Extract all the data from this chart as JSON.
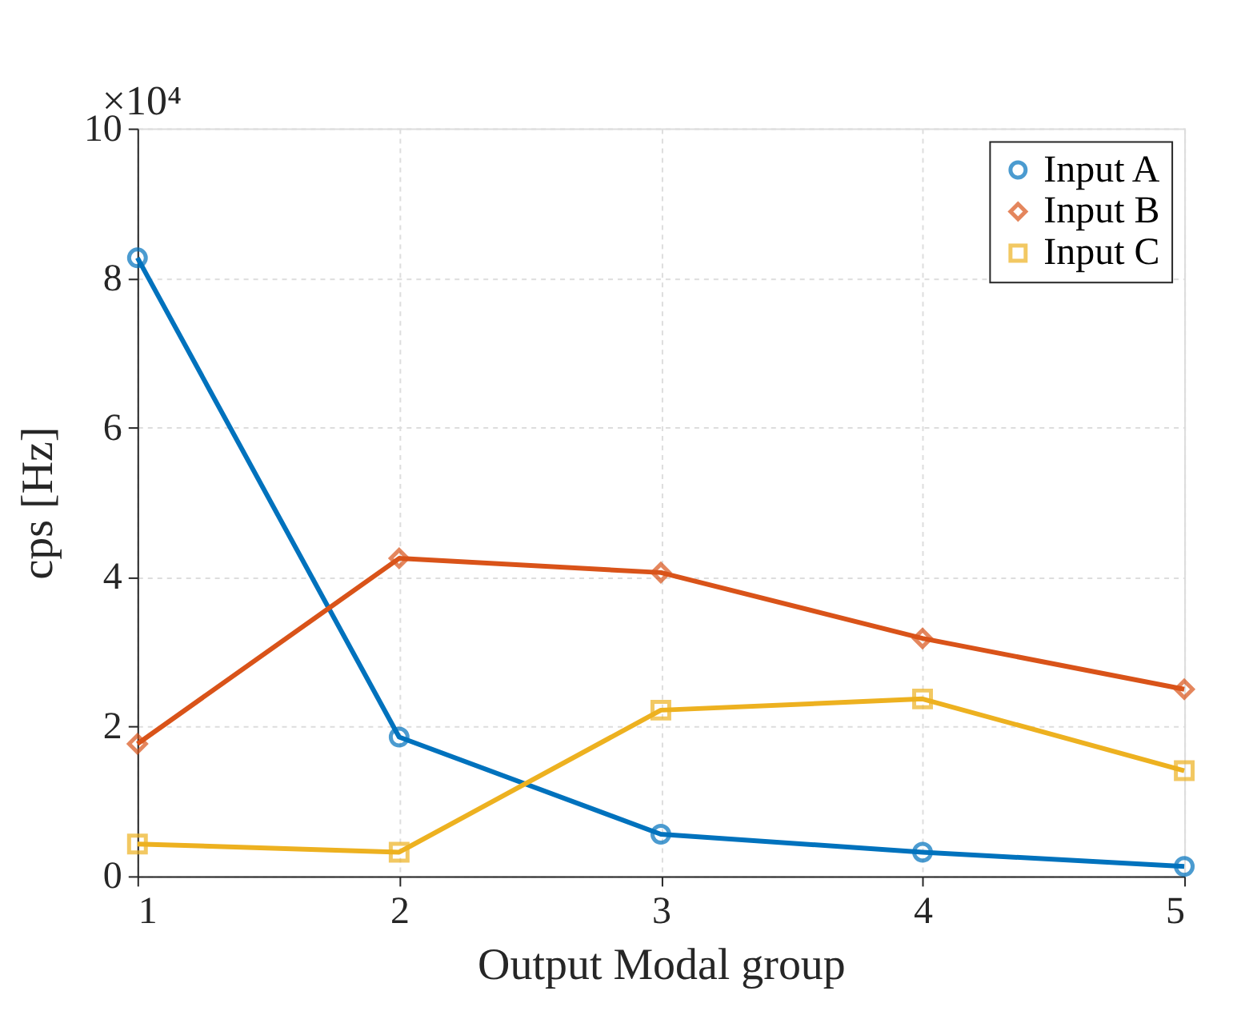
{
  "chart_data": {
    "type": "line",
    "xlabel": "Output Modal group",
    "ylabel": "cps [Hz]",
    "annotations": [
      "×10⁴"
    ],
    "x": [
      1,
      2,
      3,
      4,
      5
    ],
    "series": [
      {
        "name": "Input A",
        "color": "#0072bd",
        "marker": "circle",
        "values": [
          8.27,
          1.86,
          0.56,
          0.32,
          0.13
        ]
      },
      {
        "name": "Input B",
        "color": "#d95319",
        "marker": "diamond",
        "values": [
          1.77,
          4.25,
          4.06,
          3.18,
          2.5
        ]
      },
      {
        "name": "Input C",
        "color": "#edb120",
        "marker": "square",
        "values": [
          0.43,
          0.32,
          2.22,
          2.37,
          1.41
        ]
      }
    ],
    "xlim": [
      1,
      5
    ],
    "xticks": [
      1,
      2,
      3,
      4,
      5
    ],
    "ylim": [
      0,
      10
    ],
    "yticks": [
      0,
      2,
      4,
      6,
      8,
      10
    ],
    "grid": true,
    "legend": "top right",
    "line_style": "solid"
  }
}
